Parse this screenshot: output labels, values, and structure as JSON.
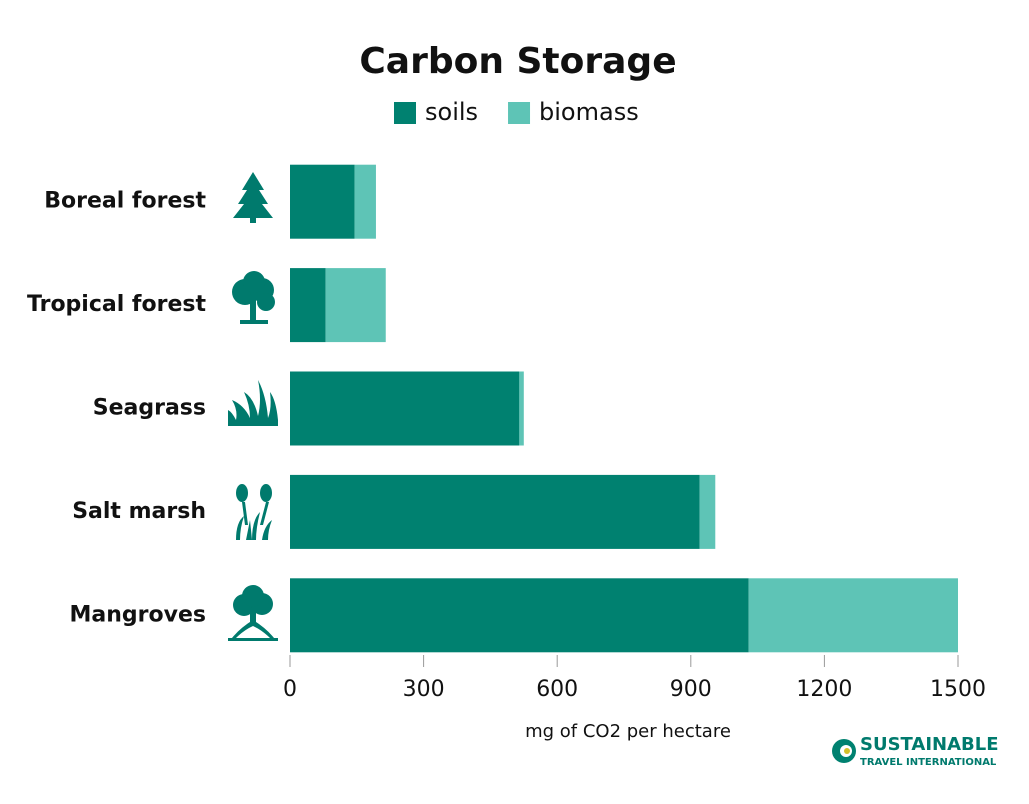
{
  "chart_data": {
    "type": "stacked-bar-horizontal",
    "title": "Carbon Storage",
    "categories": [
      "Boreal forest",
      "Tropical forest",
      "Seagrass",
      "Salt marsh",
      "Mangroves"
    ],
    "series": [
      {
        "name": "soils",
        "color": "#008170",
        "values": [
          145,
          80,
          515,
          920,
          1030
        ]
      },
      {
        "name": "biomass",
        "color": "#5ec4b6",
        "values": [
          48,
          135,
          10,
          35,
          470
        ]
      }
    ],
    "xlim": [
      0,
      1500
    ],
    "xticks": [
      0,
      300,
      600,
      900,
      1200,
      1500
    ],
    "x_label": "mg of CO2 per hectare"
  },
  "logo": {
    "line1": "SUSTAINABLE",
    "line2": "TRAVEL INTERNATIONAL"
  }
}
